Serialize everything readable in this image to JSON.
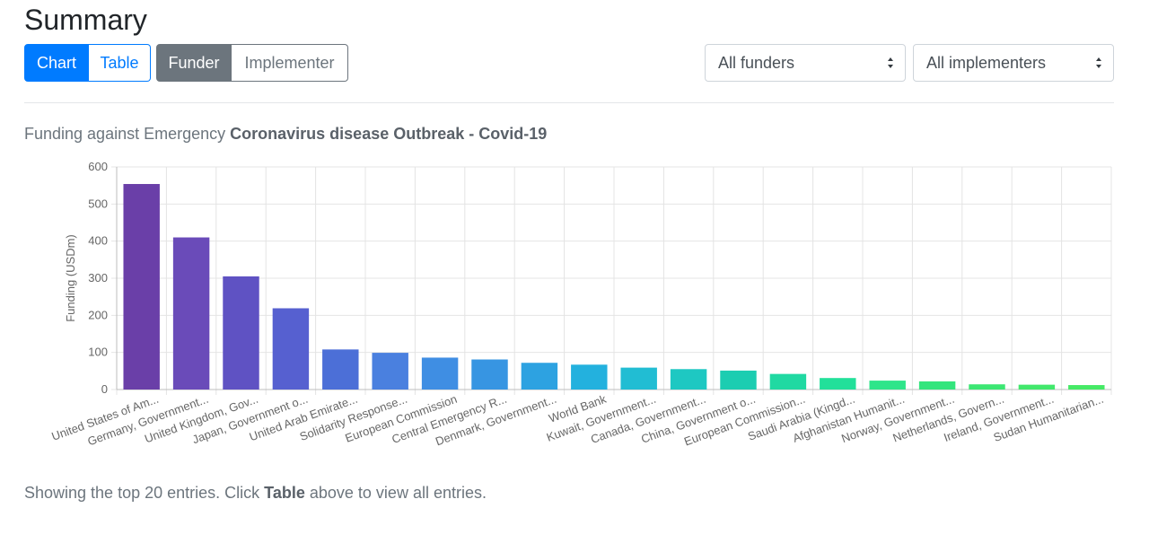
{
  "page": {
    "title": "Summary"
  },
  "view_toggle": {
    "chart_label": "Chart",
    "table_label": "Table",
    "active": "chart"
  },
  "mode_toggle": {
    "funder_label": "Funder",
    "implementer_label": "Implementer",
    "active": "funder"
  },
  "filters": {
    "funders_selected": "All funders",
    "implementers_selected": "All implementers"
  },
  "heading": {
    "prefix": "Funding against Emergency",
    "emergency_name": "Coronavirus disease Outbreak - Covid-19"
  },
  "footer": {
    "prefix": "Showing the top 20 entries. Click",
    "link_word": "Table",
    "suffix": "above to view all entries."
  },
  "chart_data": {
    "type": "bar",
    "title": "",
    "xlabel": "",
    "ylabel": "Funding (USDm)",
    "ylim": [
      0,
      600
    ],
    "yticks": [
      0,
      100,
      200,
      300,
      400,
      500,
      600
    ],
    "grid": true,
    "legend": "none",
    "categories": [
      "United States of Am...",
      "Germany, Government...",
      "United Kingdom, Gov...",
      "Japan, Government o...",
      "United Arab Emirate...",
      "Solidarity Response...",
      "European Commission",
      "Central Emergency R...",
      "Denmark, Government...",
      "World Bank",
      "Kuwait, Government...",
      "Canada, Government...",
      "China, Government o...",
      "European Commission...",
      "Saudi Arabia (Kingd...",
      "Afghanistan Humanit...",
      "Norway, Government...",
      "Netherlands, Govern...",
      "Ireland, Government...",
      "Sudan Humanitarian..."
    ],
    "values": [
      554,
      410,
      305,
      219,
      108,
      99,
      86,
      81,
      72,
      67,
      59,
      55,
      51,
      42,
      31,
      24,
      22,
      14,
      13,
      12
    ],
    "colors": [
      "#6a3fa8",
      "#6a4bb9",
      "#5f52c3",
      "#5660d0",
      "#4c6fd7",
      "#4a80df",
      "#3f8ee3",
      "#3795e2",
      "#2da2e1",
      "#23b1de",
      "#21bdd3",
      "#1ec8c2",
      "#1ccdb1",
      "#20d9a2",
      "#22e09a",
      "#2ee58a",
      "#33e57d",
      "#3ce773",
      "#42e86c",
      "#46ea66"
    ]
  }
}
